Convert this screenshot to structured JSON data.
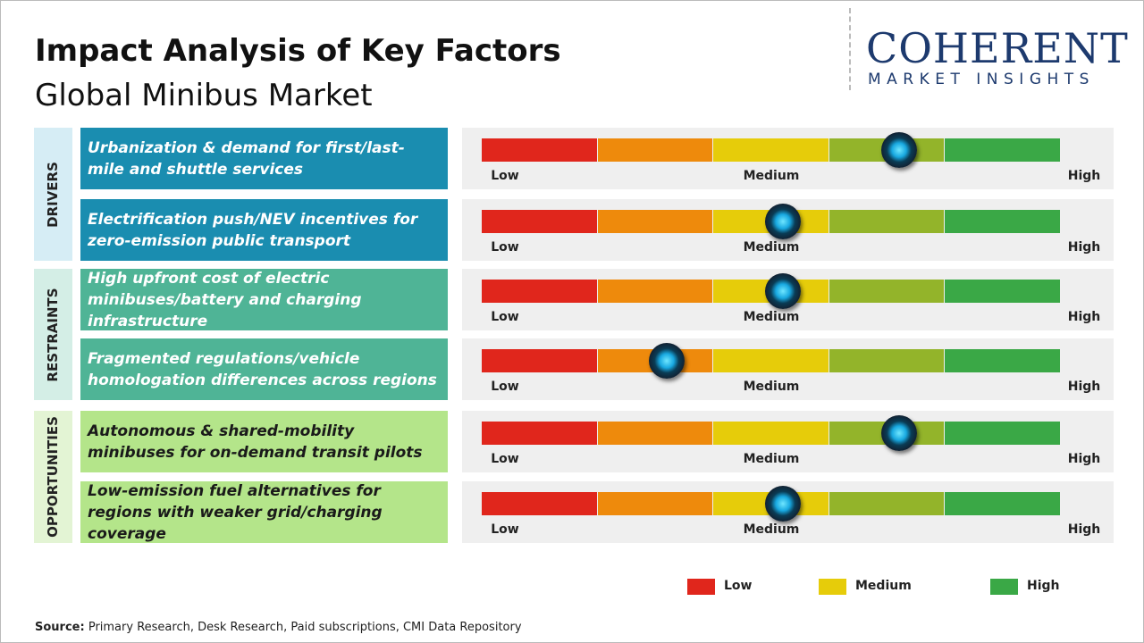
{
  "header": {
    "title": "Impact Analysis of Key Factors",
    "subtitle": "Global Minibus Market"
  },
  "logo": {
    "name": "COHERENT",
    "tagline": "MARKET INSIGHTS"
  },
  "gauge": {
    "range": [
      0,
      5
    ],
    "segment_colors": [
      "#e0261c",
      "#ee8a0c",
      "#e6cc0a",
      "#93b42a",
      "#3aa846"
    ],
    "scale_labels": [
      "Low",
      "Medium",
      "High"
    ]
  },
  "groups": [
    {
      "label": "DRIVERS",
      "color": "#1a8db0",
      "background": "#d6edf5",
      "text_color": "#ffffff",
      "factors": [
        {
          "text": "Urbanization & demand for first/last-mile and shuttle services",
          "impact": 3.6
        },
        {
          "text": "Electrification push/NEV incentives for zero-emission public transport",
          "impact": 2.6
        }
      ]
    },
    {
      "label": "RESTRAINTS",
      "color": "#4fb496",
      "background": "#d4eee6",
      "text_color": "#ffffff",
      "factors": [
        {
          "text": "High upfront cost of electric minibuses/battery and charging infrastructure",
          "impact": 2.6
        },
        {
          "text": "Fragmented regulations/vehicle homologation differences across regions",
          "impact": 1.6
        }
      ]
    },
    {
      "label": "OPPORTUNITIES",
      "color": "#b4e58a",
      "background": "#e3f4d4",
      "text_color": "#1a1a1a",
      "factors": [
        {
          "text": "Autonomous & shared-mobility minibuses for on-demand transit pilots",
          "impact": 3.6
        },
        {
          "text": "Low-emission fuel alternatives for regions with weaker grid/charging coverage",
          "impact": 2.6
        }
      ]
    }
  ],
  "legend": [
    {
      "label": "Low",
      "color": "#e0261c"
    },
    {
      "label": "Medium",
      "color": "#e6cc0a"
    },
    {
      "label": "High",
      "color": "#3aa846"
    }
  ],
  "source": {
    "label": "Source:",
    "text": "Primary Research, Desk Research, Paid subscriptions, CMI Data Repository"
  }
}
